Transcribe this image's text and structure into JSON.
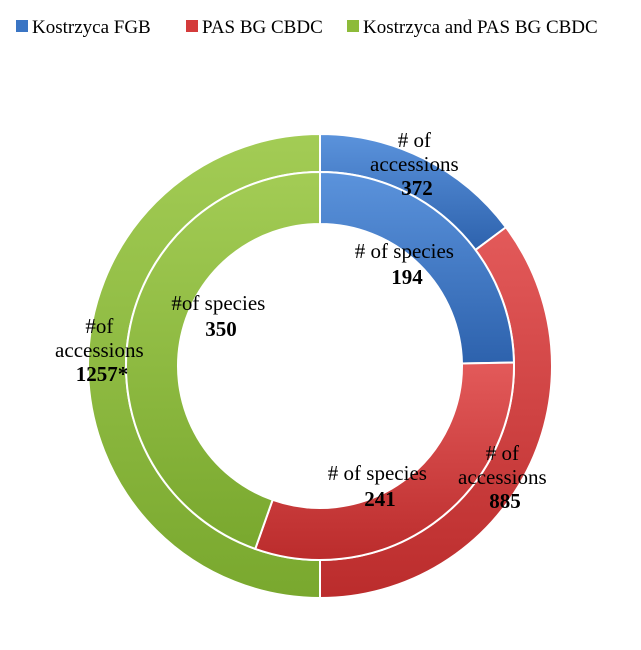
{
  "chart_data": {
    "type": "pie",
    "legend": {
      "position": "top",
      "entries": [
        {
          "name": "Kostrzyca FGB",
          "color": "#3a75c4"
        },
        {
          "name": "PAS BG CBDC",
          "color": "#d43b3b"
        },
        {
          "name": "Kostrzyca and PAS BG CBDC",
          "color": "#8dbb3a"
        }
      ]
    },
    "rings": [
      {
        "ring": "outer",
        "slices": [
          {
            "series": "Kostrzyca FGB",
            "label_lines": [
              "# of",
              "accessions"
            ],
            "value_text": "372",
            "value": 372
          },
          {
            "series": "PAS BG CBDC",
            "label_lines": [
              "# of",
              "accessions"
            ],
            "value_text": "885",
            "value": 885
          },
          {
            "series": "Kostrzyca and PAS BG CBDC",
            "label_lines": [
              "#of",
              "accessions"
            ],
            "value_text": "1257*",
            "value": 1257
          }
        ]
      },
      {
        "ring": "inner",
        "slices": [
          {
            "series": "Kostrzyca FGB",
            "label_lines": [
              "# of species"
            ],
            "value_text": "194",
            "value": 194
          },
          {
            "series": "PAS BG CBDC",
            "label_lines": [
              "# of species"
            ],
            "value_text": "241",
            "value": 241
          },
          {
            "series": "Kostrzyca and PAS BG CBDC",
            "label_lines": [
              "#of species"
            ],
            "value_text": "350",
            "value": 350
          }
        ]
      }
    ]
  }
}
